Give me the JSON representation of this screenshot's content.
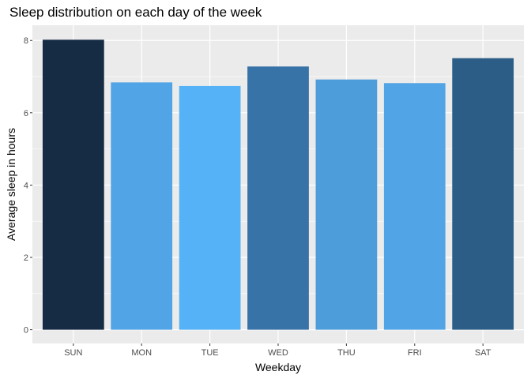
{
  "chart_data": {
    "type": "bar",
    "title": "Sleep distribution on each day of the week",
    "xlabel": "Weekday",
    "ylabel": "Average sleep in hours",
    "categories": [
      "SUN",
      "MON",
      "TUE",
      "WED",
      "THU",
      "FRI",
      "SAT"
    ],
    "values": [
      8.02,
      6.84,
      6.74,
      7.28,
      6.92,
      6.82,
      7.51
    ],
    "bar_colors": [
      "#162c45",
      "#51a4e5",
      "#56b2f6",
      "#3873a8",
      "#4e9ddb",
      "#51a4e5",
      "#2b5d87"
    ],
    "ylim": [
      -0.38,
      8.42
    ],
    "yticks": [
      0,
      2,
      4,
      6,
      8
    ],
    "grid": true,
    "panel_background": "#ebebeb",
    "gridline_color": "#ffffff"
  }
}
